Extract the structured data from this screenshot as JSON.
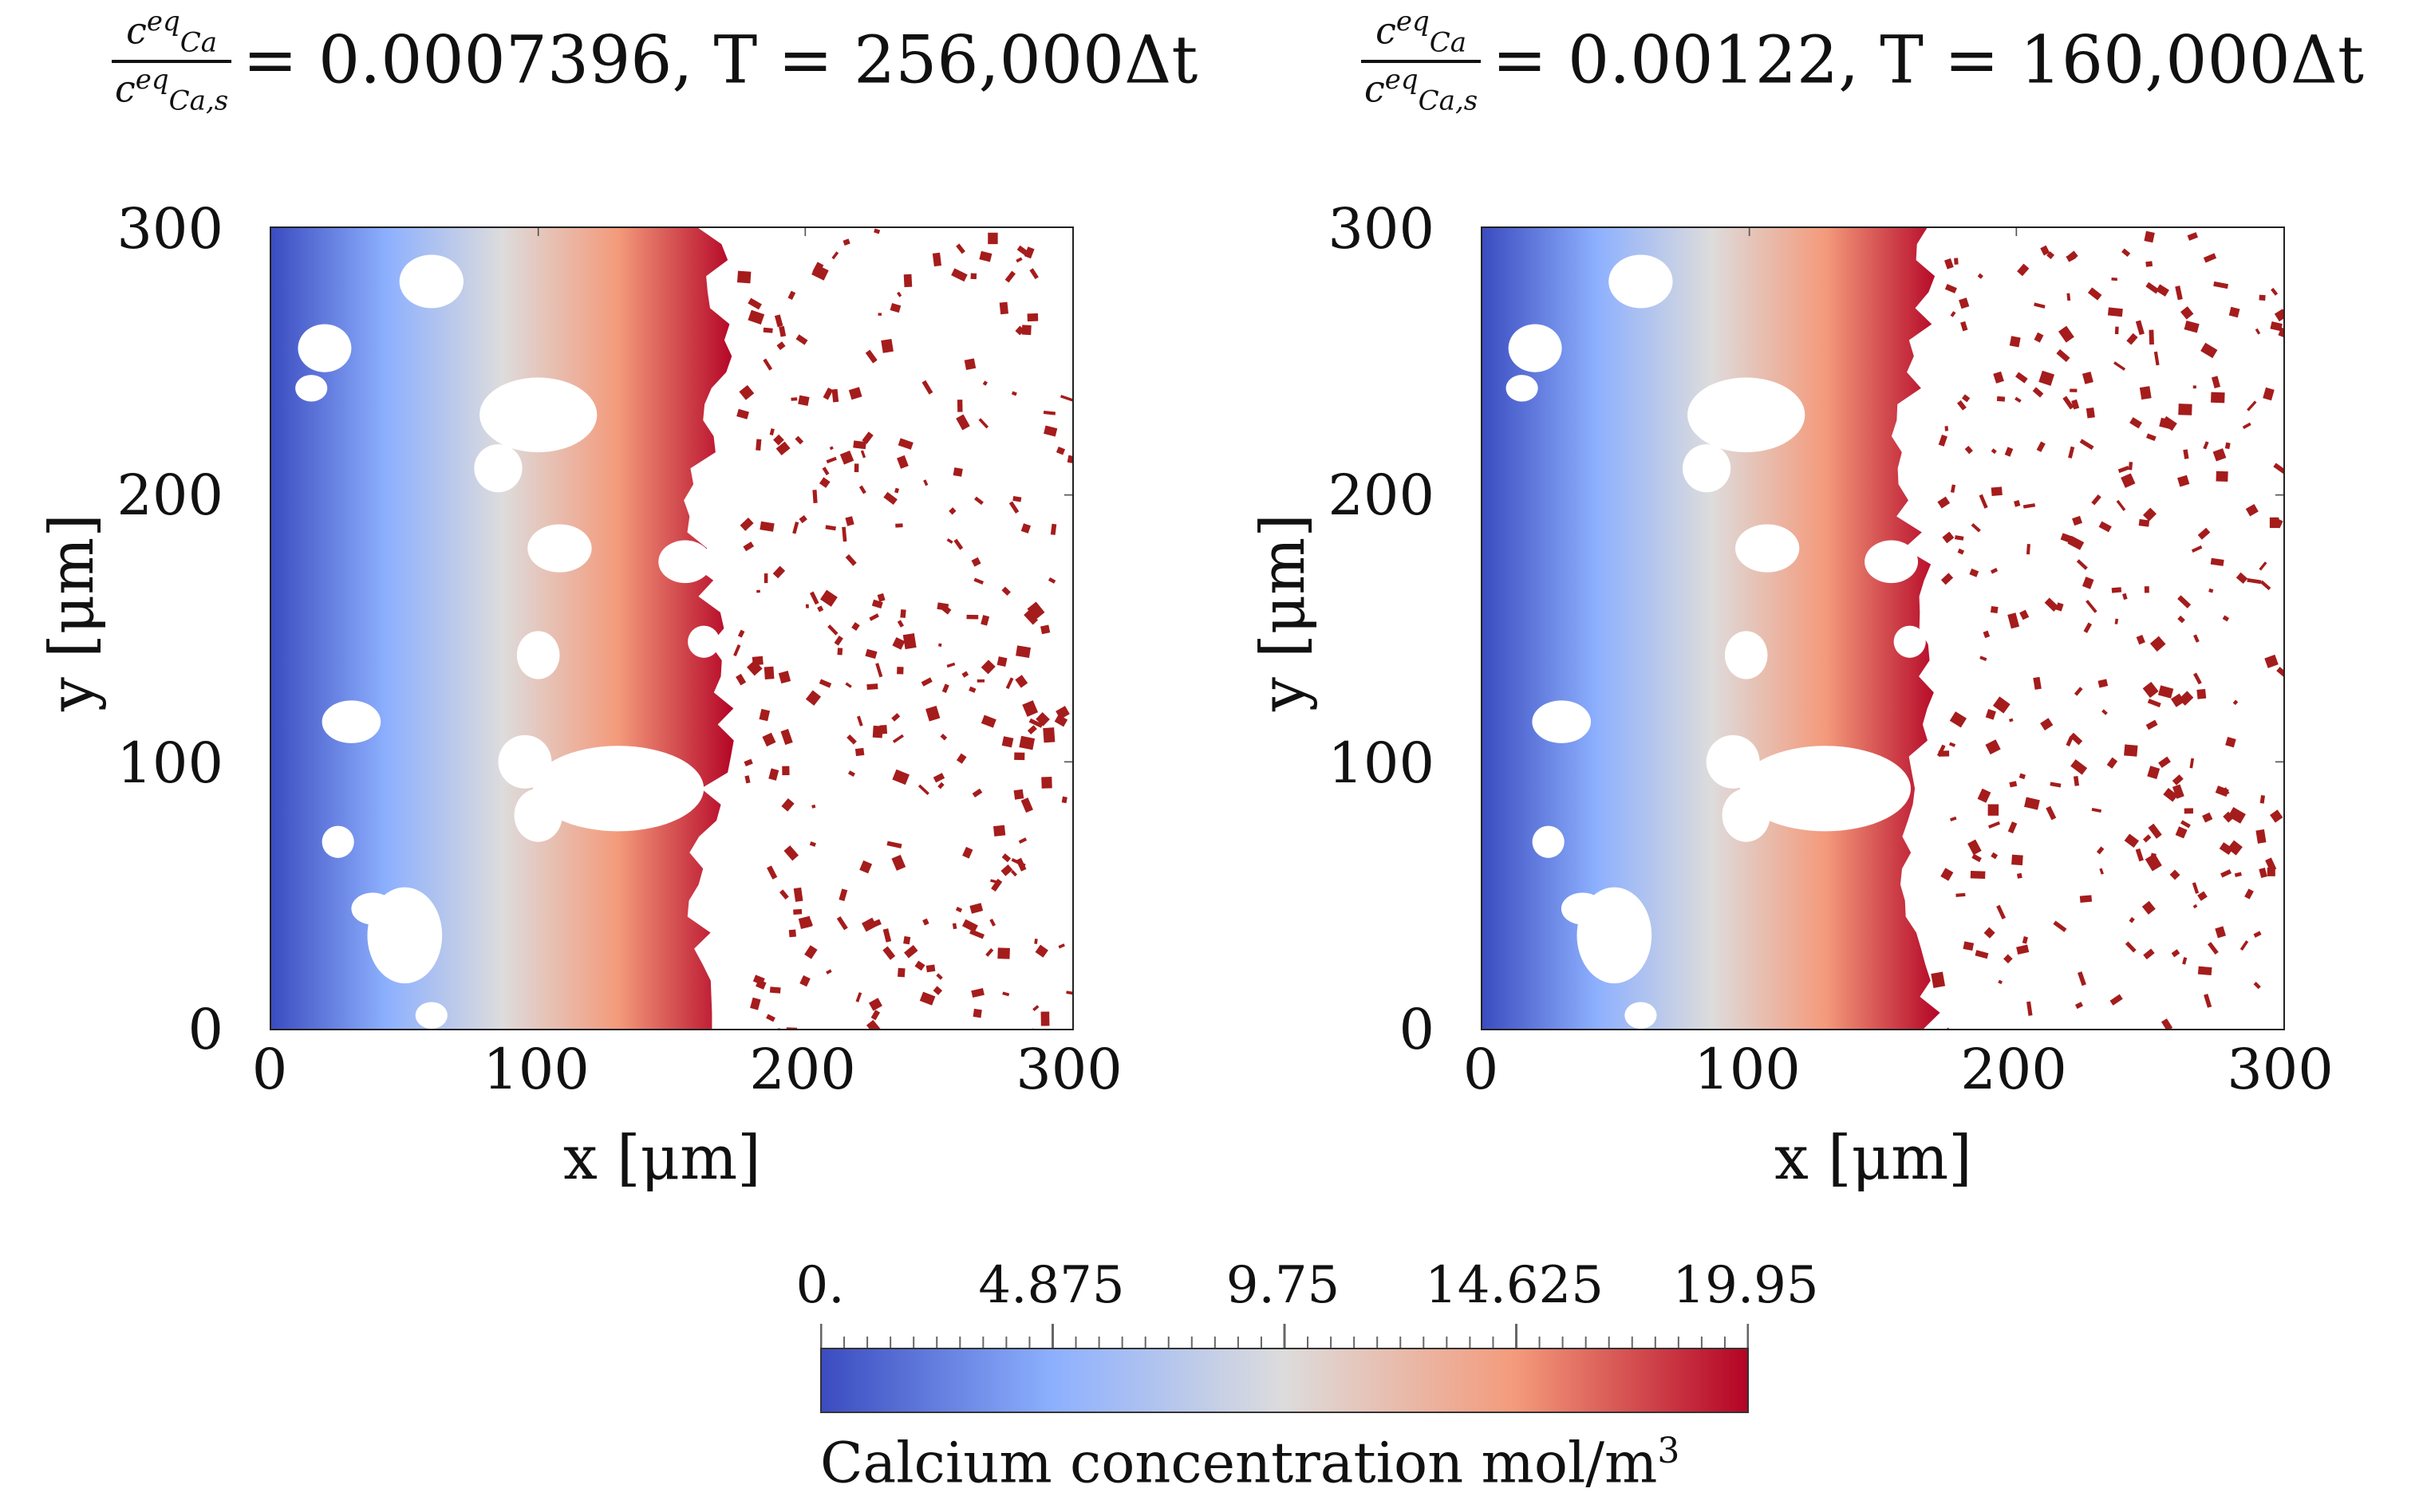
{
  "chart_data": [
    {
      "type": "heatmap",
      "title_parts": {
        "numerator": "c",
        "num_sup": "eq",
        "num_sub": "Ca",
        "denominator": "c",
        "den_sup": "eq",
        "den_sub": "Ca,s",
        "rest": "= 0.0007396, T = 256,000Δt"
      },
      "xlabel": "x [μm]",
      "ylabel": "y [μm]",
      "xlim": [
        0,
        300
      ],
      "ylim": [
        0,
        300
      ],
      "xticks": [
        "0",
        "100",
        "200",
        "300"
      ],
      "yticks": [
        "0",
        "100",
        "200",
        "300"
      ],
      "front_x": 168,
      "color_range": [
        0,
        19.95
      ]
    },
    {
      "type": "heatmap",
      "title_parts": {
        "numerator": "c",
        "num_sup": "eq",
        "num_sub": "Ca",
        "denominator": "c",
        "den_sup": "eq",
        "den_sub": "Ca,s",
        "rest": "= 0.00122, T = 160,000Δt"
      },
      "xlabel": "x [μm]",
      "ylabel": "y [μm]",
      "xlim": [
        0,
        300
      ],
      "ylim": [
        0,
        300
      ],
      "xticks": [
        "0",
        "100",
        "200",
        "300"
      ],
      "yticks": [
        "0",
        "100",
        "200",
        "300"
      ],
      "front_x": 166,
      "color_range": [
        0,
        19.95
      ]
    }
  ],
  "colorbar": {
    "label": "Calcium concentration mol/m",
    "label_sup": "3",
    "ticks": [
      "0.",
      "4.875",
      "9.75",
      "14.625",
      "19.95"
    ],
    "tick_values": [
      0,
      4.875,
      9.75,
      14.625,
      19.95
    ],
    "min": 0,
    "max": 19.95,
    "colors": [
      "#3b4cc0",
      "#8db0fe",
      "#dddcdc",
      "#f49a7b",
      "#b40426"
    ]
  }
}
